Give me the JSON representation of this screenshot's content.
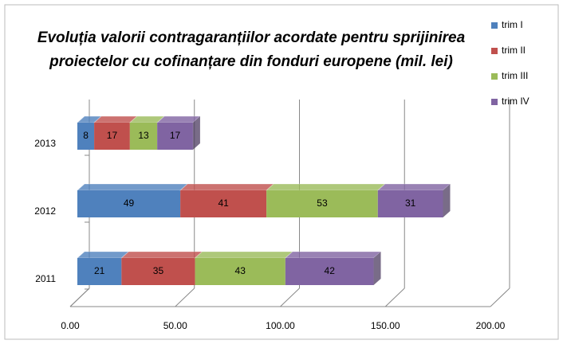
{
  "chart_data": {
    "type": "bar3d_stacked_horizontal",
    "title": [
      "Evoluția valorii contragaranțiilor acordate pentru sprijinirea",
      "proiectelor cu cofinanțare din fonduri europene  (mil. lei)"
    ],
    "categories": [
      "2011",
      "2012",
      "2013"
    ],
    "series": [
      {
        "name": "trim I",
        "color": "#4f81bd",
        "values": [
          21,
          49,
          8
        ]
      },
      {
        "name": "trim II",
        "color": "#c0504d",
        "values": [
          35,
          41,
          17
        ]
      },
      {
        "name": "trim III",
        "color": "#9bbb59",
        "values": [
          43,
          53,
          13
        ]
      },
      {
        "name": "trim IV",
        "color": "#8064a2",
        "values": [
          42,
          31,
          17
        ]
      }
    ],
    "xlim": [
      0,
      200
    ],
    "xticks": [
      {
        "value": 0,
        "label": "0.00"
      },
      {
        "value": 50,
        "label": "50.00"
      },
      {
        "value": 100,
        "label": "100.00"
      },
      {
        "value": 150,
        "label": "150.00"
      },
      {
        "value": 200,
        "label": "200.00"
      }
    ],
    "grid": true,
    "legend": "top-right"
  }
}
